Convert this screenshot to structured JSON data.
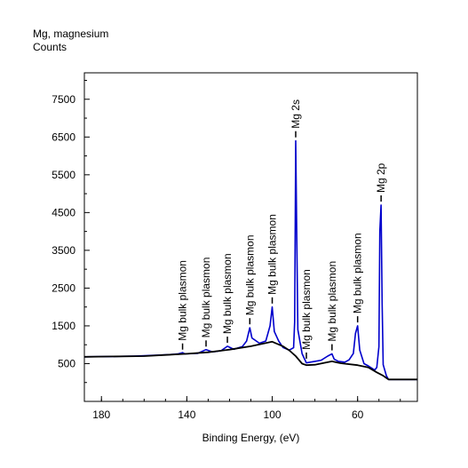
{
  "chart_data": {
    "type": "line",
    "title": "Mg, magnesium",
    "ylabel": "Counts",
    "xlabel": "Binding Energy, (eV)",
    "x_reversed": true,
    "xlim": [
      188,
      32
    ],
    "ylim": [
      -500,
      8200
    ],
    "xticks": [
      180,
      140,
      100,
      60
    ],
    "xtick_labels": [
      "180",
      "140",
      "100",
      "60"
    ],
    "yticks": [
      500,
      1500,
      2500,
      3500,
      4500,
      5500,
      6500,
      7500
    ],
    "ytick_labels": [
      "500",
      "1500",
      "2500",
      "3500",
      "4500",
      "5500",
      "6500",
      "7500"
    ],
    "grid": false,
    "series": [
      {
        "color": "#0000cc",
        "points": [
          [
            188,
            680
          ],
          [
            175,
            690
          ],
          [
            165,
            700
          ],
          [
            155,
            720
          ],
          [
            148,
            740
          ],
          [
            144,
            760
          ],
          [
            142,
            790
          ],
          [
            141,
            760
          ],
          [
            135,
            770
          ],
          [
            131,
            870
          ],
          [
            128,
            810
          ],
          [
            124,
            840
          ],
          [
            121,
            960
          ],
          [
            118,
            880
          ],
          [
            114,
            950
          ],
          [
            112,
            1100
          ],
          [
            110.5,
            1450
          ],
          [
            109.5,
            1180
          ],
          [
            106,
            1040
          ],
          [
            103,
            1100
          ],
          [
            101,
            1500
          ],
          [
            100,
            2000
          ],
          [
            99,
            1350
          ],
          [
            97,
            1100
          ],
          [
            95,
            930
          ],
          [
            92,
            860
          ],
          [
            90,
            920
          ],
          [
            89.5,
            1600
          ],
          [
            89,
            6400
          ],
          [
            88.5,
            3800
          ],
          [
            88,
            1400
          ],
          [
            86,
            760
          ],
          [
            84,
            520
          ],
          [
            80,
            560
          ],
          [
            77,
            590
          ],
          [
            74,
            700
          ],
          [
            72,
            760
          ],
          [
            71,
            620
          ],
          [
            69,
            560
          ],
          [
            66,
            540
          ],
          [
            64,
            600
          ],
          [
            62,
            770
          ],
          [
            61,
            1300
          ],
          [
            60,
            1500
          ],
          [
            59,
            860
          ],
          [
            57,
            500
          ],
          [
            55,
            440
          ],
          [
            52,
            330
          ],
          [
            51,
            400
          ],
          [
            50,
            950
          ],
          [
            49.6,
            4000
          ],
          [
            49,
            4700
          ],
          [
            48.5,
            2100
          ],
          [
            48,
            470
          ],
          [
            46.5,
            180
          ],
          [
            45.5,
            80
          ],
          [
            32,
            80
          ]
        ]
      },
      {
        "color": "#000000",
        "points": [
          [
            188,
            680
          ],
          [
            160,
            700
          ],
          [
            150,
            730
          ],
          [
            140,
            760
          ],
          [
            130,
            800
          ],
          [
            120,
            870
          ],
          [
            110,
            960
          ],
          [
            100,
            1080
          ],
          [
            95,
            960
          ],
          [
            92,
            850
          ],
          [
            89,
            700
          ],
          [
            86,
            500
          ],
          [
            84,
            460
          ],
          [
            80,
            470
          ],
          [
            72,
            560
          ],
          [
            68,
            510
          ],
          [
            60,
            460
          ],
          [
            55,
            400
          ],
          [
            51,
            270
          ],
          [
            48,
            180
          ],
          [
            46.5,
            120
          ],
          [
            45.5,
            80
          ],
          [
            32,
            80
          ]
        ]
      }
    ],
    "annotations": [
      {
        "text": "Mg bulk plasmon",
        "x": 142,
        "y": 800
      },
      {
        "text": "Mg bulk plasmon",
        "x": 131,
        "y": 880
      },
      {
        "text": "Mg bulk plasmon",
        "x": 121,
        "y": 980
      },
      {
        "text": "Mg bulk plasmon",
        "x": 110.5,
        "y": 1470
      },
      {
        "text": "Mg bulk plasmon",
        "x": 100,
        "y": 2020
      },
      {
        "text": "Mg 2s",
        "x": 89,
        "y": 6420
      },
      {
        "text": "Mg bulk plasmon",
        "x": 84,
        "y": 560
      },
      {
        "text": "Mg bulk plasmon",
        "x": 72,
        "y": 780
      },
      {
        "text": "Mg bulk plasmon",
        "x": 60,
        "y": 1520
      },
      {
        "text": "Mg 2p",
        "x": 49,
        "y": 4720
      }
    ]
  }
}
